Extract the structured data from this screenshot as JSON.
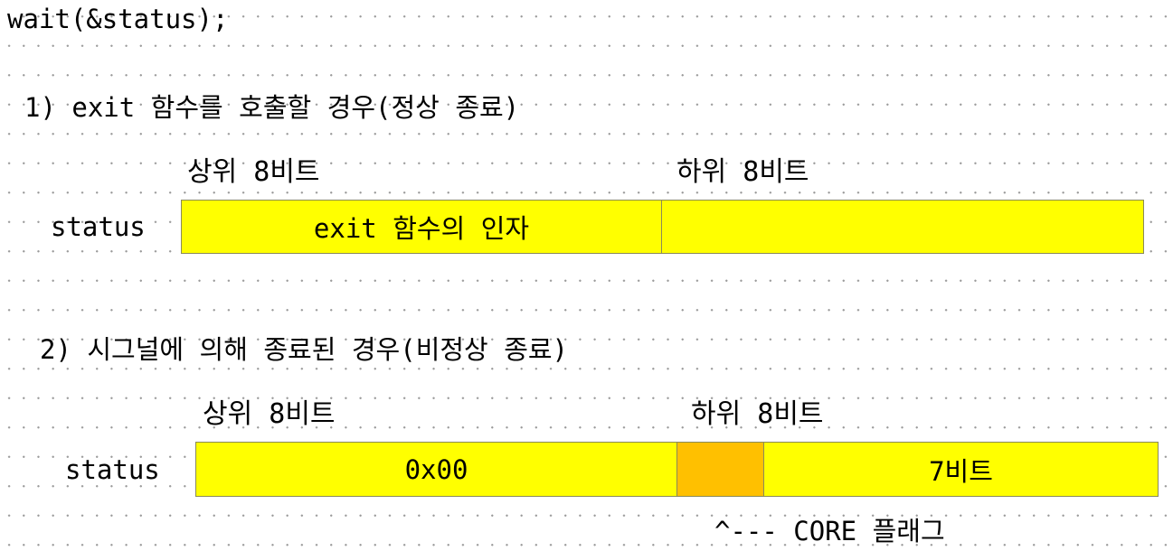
{
  "code": "wait(&status);",
  "case1": {
    "heading": "1) exit 함수를 호출할 경우(정상 종료)",
    "high_label": "상위 8비트",
    "low_label": "하위 8비트",
    "var_name": "status",
    "high_box_text": "exit 함수의 인자",
    "low_box_text": ""
  },
  "case2": {
    "heading": "2) 시그널에 의해 종료된 경우(비정상 종료)",
    "high_label": "상위 8비트",
    "low_label": "하위 8비트",
    "var_name": "status",
    "high_box_text": "0x00",
    "core_box_text": "",
    "low_box_text": "7비트",
    "core_note": "^--- CORE 플래그"
  },
  "colors": {
    "box_fill": "#ffff00",
    "core_fill": "#ffc000",
    "background": "#ffffff",
    "grid_dots": "#9a9a9a"
  }
}
